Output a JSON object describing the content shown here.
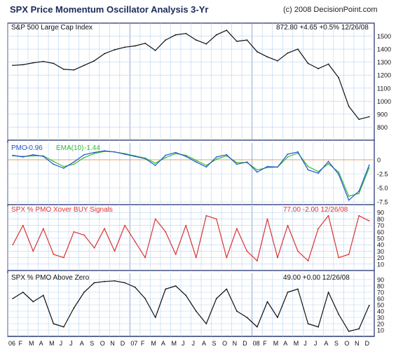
{
  "header": {
    "title": "SPX Price Momentum Oscillator Analysis 3-Yr",
    "copyright": "(c) 2008 DecisionPoint.com"
  },
  "colors": {
    "panel_border": "#1c2a6b",
    "grid": "#b9d3ee",
    "zero_line": "#e0a060",
    "price": "#111111",
    "pmo": "#2255cc",
    "ema": "#33bb33",
    "xover": "#dd3333",
    "above_zero": "#111111"
  },
  "x_axis": {
    "tick_labels": [
      "06",
      "F",
      "M",
      "A",
      "M",
      "J",
      "J",
      "A",
      "S",
      "O",
      "N",
      "D",
      "07",
      "F",
      "M",
      "A",
      "M",
      "J",
      "J",
      "A",
      "S",
      "O",
      "N",
      "D",
      "08",
      "F",
      "M",
      "A",
      "M",
      "J",
      "J",
      "A",
      "S",
      "O",
      "N",
      "D"
    ]
  },
  "panels": {
    "price": {
      "title": "S&P 500 Large Cap Index",
      "readout": "872.80 +4.65 +0.5%   12/26/08"
    },
    "pmo": {
      "label_pmo": "PMO",
      "value_pmo": "-0.96",
      "label_ema": "EMA(10)",
      "value_ema": "-1.44"
    },
    "xover": {
      "title": "SPX % PMO Xover BUY Signals",
      "readout": "77.00  -2.00  12/26/08"
    },
    "above": {
      "title": "SPX % PMO Above Zero",
      "readout": "49.00 +0.00 12/26/08"
    }
  },
  "chart_data": [
    {
      "type": "line",
      "title": "S&P 500 Large Cap Index",
      "ylim": [
        700,
        1600
      ],
      "yticks": [
        800,
        900,
        1000,
        1100,
        1200,
        1300,
        1400,
        1500
      ],
      "x": [
        "2006-01",
        "2006-02",
        "2006-03",
        "2006-04",
        "2006-05",
        "2006-06",
        "2006-07",
        "2006-08",
        "2006-09",
        "2006-10",
        "2006-11",
        "2006-12",
        "2007-01",
        "2007-02",
        "2007-03",
        "2007-04",
        "2007-05",
        "2007-06",
        "2007-07",
        "2007-08",
        "2007-09",
        "2007-10",
        "2007-11",
        "2007-12",
        "2008-01",
        "2008-02",
        "2008-03",
        "2008-04",
        "2008-05",
        "2008-06",
        "2008-07",
        "2008-08",
        "2008-09",
        "2008-10",
        "2008-11",
        "2008-12"
      ],
      "series": [
        {
          "values": [
            1275,
            1280,
            1295,
            1305,
            1290,
            1245,
            1240,
            1275,
            1310,
            1365,
            1395,
            1415,
            1425,
            1445,
            1390,
            1470,
            1510,
            1520,
            1470,
            1440,
            1510,
            1545,
            1460,
            1470,
            1380,
            1340,
            1310,
            1370,
            1400,
            1290,
            1250,
            1285,
            1180,
            960,
            860,
            880
          ]
        }
      ]
    },
    {
      "type": "line",
      "ylim": [
        -8,
        3
      ],
      "yticks": [
        -7.5,
        -5.0,
        -2.5,
        0
      ],
      "x": [
        "2006-01",
        "2006-02",
        "2006-03",
        "2006-04",
        "2006-05",
        "2006-06",
        "2006-07",
        "2006-08",
        "2006-09",
        "2006-10",
        "2006-11",
        "2006-12",
        "2007-01",
        "2007-02",
        "2007-03",
        "2007-04",
        "2007-05",
        "2007-06",
        "2007-07",
        "2007-08",
        "2007-09",
        "2007-10",
        "2007-11",
        "2007-12",
        "2008-01",
        "2008-02",
        "2008-03",
        "2008-04",
        "2008-05",
        "2008-06",
        "2008-07",
        "2008-08",
        "2008-09",
        "2008-10",
        "2008-11",
        "2008-12"
      ],
      "series": [
        {
          "name": "PMO",
          "values": [
            0.8,
            0.5,
            0.9,
            0.6,
            -0.8,
            -1.5,
            -0.4,
            0.9,
            1.3,
            1.6,
            1.4,
            1.0,
            0.6,
            0.2,
            -1.0,
            0.8,
            1.3,
            0.6,
            -0.4,
            -1.3,
            0.5,
            0.9,
            -0.8,
            -0.4,
            -2.2,
            -1.2,
            -1.3,
            1.0,
            1.4,
            -1.8,
            -2.4,
            -0.3,
            -2.6,
            -7.2,
            -5.6,
            -0.96
          ]
        },
        {
          "name": "EMA(10)",
          "values": [
            0.7,
            0.6,
            0.7,
            0.7,
            -0.3,
            -1.2,
            -0.8,
            0.4,
            1.1,
            1.5,
            1.4,
            1.1,
            0.7,
            0.3,
            -0.6,
            0.4,
            1.1,
            0.8,
            -0.1,
            -1.0,
            0.1,
            0.7,
            -0.5,
            -0.5,
            -1.8,
            -1.4,
            -1.3,
            0.5,
            1.2,
            -1.2,
            -2.1,
            -0.7,
            -2.2,
            -6.5,
            -6.0,
            -1.44
          ]
        }
      ]
    },
    {
      "type": "line",
      "title": "SPX % PMO Xover BUY Signals",
      "ylim": [
        0,
        100
      ],
      "yticks": [
        10,
        20,
        30,
        40,
        50,
        60,
        70,
        80,
        90
      ],
      "x": [
        "2006-01",
        "2006-02",
        "2006-03",
        "2006-04",
        "2006-05",
        "2006-06",
        "2006-07",
        "2006-08",
        "2006-09",
        "2006-10",
        "2006-11",
        "2006-12",
        "2007-01",
        "2007-02",
        "2007-03",
        "2007-04",
        "2007-05",
        "2007-06",
        "2007-07",
        "2007-08",
        "2007-09",
        "2007-10",
        "2007-11",
        "2007-12",
        "2008-01",
        "2008-02",
        "2008-03",
        "2008-04",
        "2008-05",
        "2008-06",
        "2008-07",
        "2008-08",
        "2008-09",
        "2008-10",
        "2008-11",
        "2008-12"
      ],
      "series": [
        {
          "values": [
            40,
            70,
            30,
            65,
            25,
            20,
            60,
            55,
            35,
            65,
            30,
            70,
            45,
            20,
            80,
            60,
            25,
            70,
            20,
            85,
            80,
            20,
            65,
            30,
            15,
            80,
            20,
            70,
            30,
            15,
            65,
            85,
            20,
            25,
            85,
            77
          ]
        }
      ]
    },
    {
      "type": "line",
      "title": "SPX % PMO Above Zero",
      "ylim": [
        0,
        100
      ],
      "yticks": [
        10,
        20,
        30,
        40,
        50,
        60,
        70,
        80,
        90
      ],
      "x": [
        "2006-01",
        "2006-02",
        "2006-03",
        "2006-04",
        "2006-05",
        "2006-06",
        "2006-07",
        "2006-08",
        "2006-09",
        "2006-10",
        "2006-11",
        "2006-12",
        "2007-01",
        "2007-02",
        "2007-03",
        "2007-04",
        "2007-05",
        "2007-06",
        "2007-07",
        "2007-08",
        "2007-09",
        "2007-10",
        "2007-11",
        "2007-12",
        "2008-01",
        "2008-02",
        "2008-03",
        "2008-04",
        "2008-05",
        "2008-06",
        "2008-07",
        "2008-08",
        "2008-09",
        "2008-10",
        "2008-11",
        "2008-12"
      ],
      "series": [
        {
          "values": [
            60,
            70,
            55,
            65,
            20,
            15,
            45,
            70,
            85,
            87,
            88,
            85,
            78,
            60,
            30,
            75,
            80,
            65,
            40,
            20,
            60,
            75,
            40,
            30,
            15,
            55,
            30,
            70,
            75,
            20,
            15,
            70,
            35,
            8,
            12,
            49
          ]
        }
      ]
    }
  ]
}
